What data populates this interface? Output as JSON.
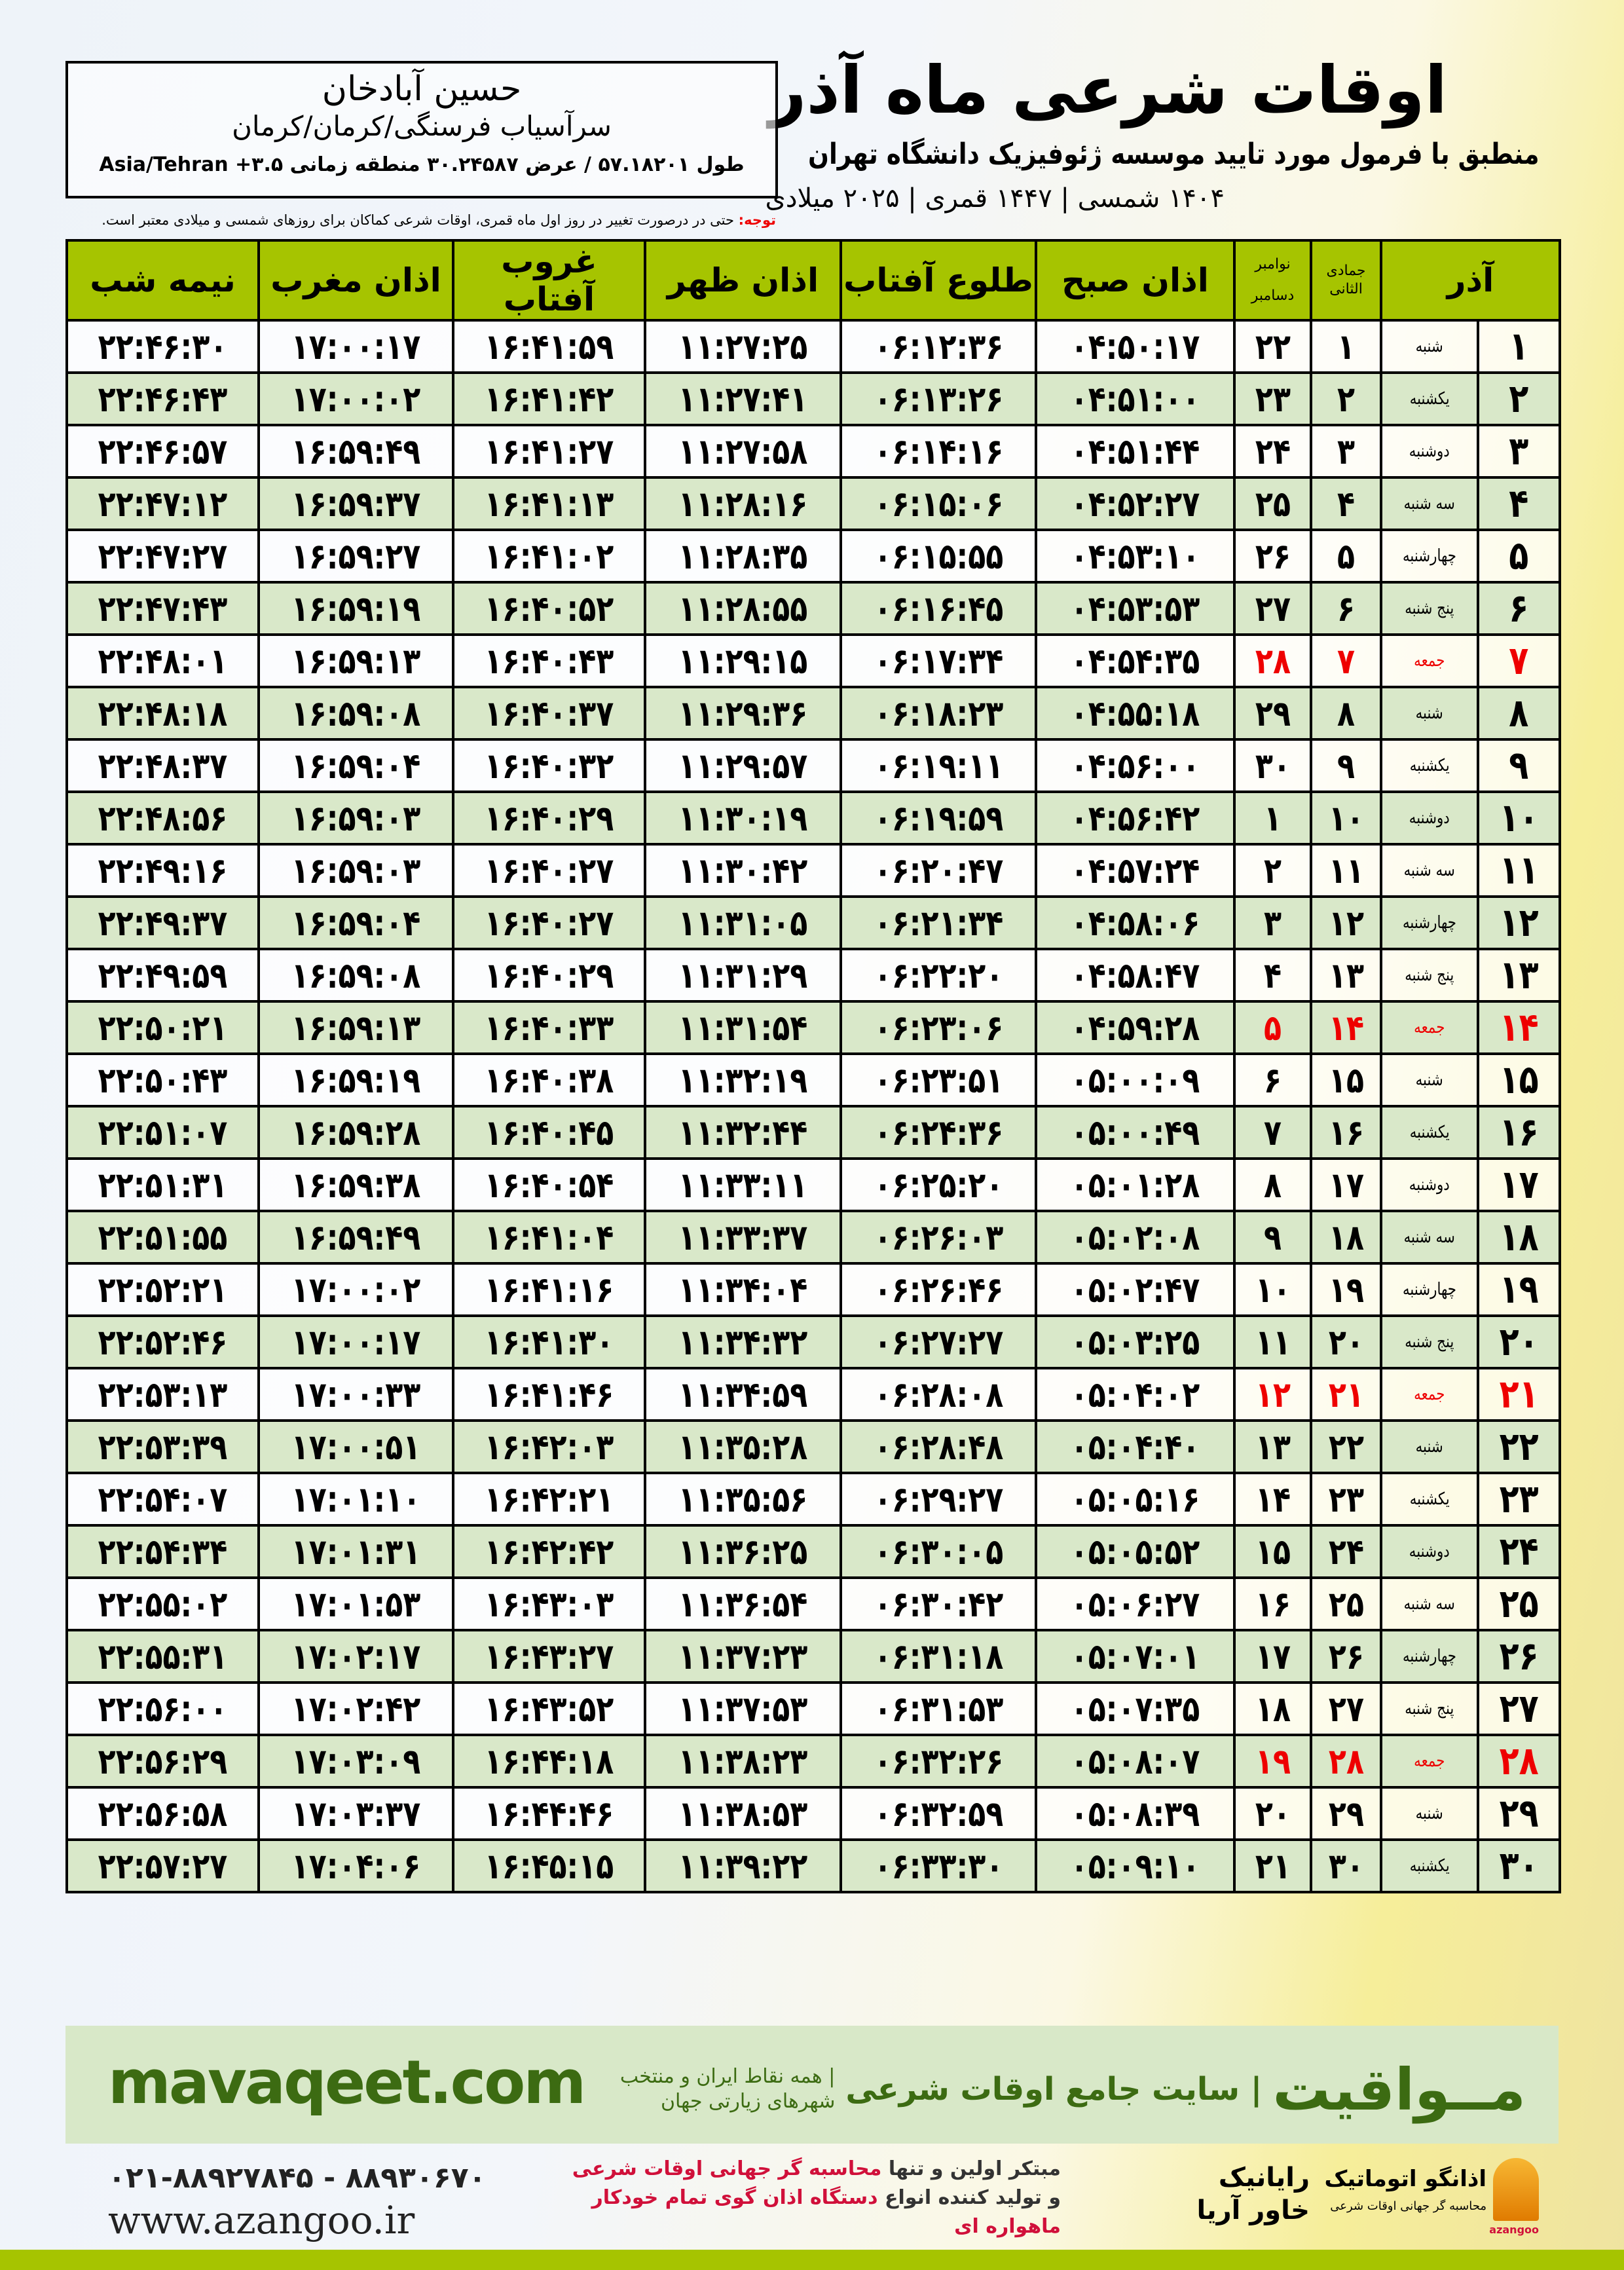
{
  "header": {
    "title": "اوقات شرعی ماه آذر",
    "subtitle": "منطبق با فرمول مورد تایید موسسه ژئوفیزیک دانشگاه تهران",
    "dateline": "۱۴۰۴ شمسی | ۱۴۴۷ قمری | ۲۰۲۵ میلادی"
  },
  "location": {
    "name": "حسین آبادخان",
    "path": "سرآسیاب فرسنگی/کرمان/کرمان",
    "coords": "طول ۵۷.۱۸۲۰۱ / عرض ۳۰.۲۴۵۸۷ منطقه زمانی ۳.۵+ Asia/Tehran"
  },
  "notice": {
    "label": "توجه:",
    "text": " حتی در درصورت تغییر در روز اول ماه قمری، اوقات شرعی کماکان برای روزهای شمسی و میلادی معتبر است."
  },
  "table": {
    "headers": {
      "month": "آذر",
      "hijri": "جمادی الثانی",
      "greg_top": "نوامبر",
      "greg_bottom": "دسامبر",
      "fajr": "اذان صبح",
      "sunrise": "طلوع آفتاب",
      "dhuhr": "اذان ظهر",
      "sunset": "غروب آفتاب",
      "maghrib": "اذان مغرب",
      "midnight": "نیمه شب"
    },
    "friday_color": "#e00000",
    "rows": [
      {
        "day": "۱",
        "weekday": "شنبه",
        "hijri": "۱",
        "greg": "۲۲",
        "fajr": "۰۴:۵۰:۱۷",
        "sunrise": "۰۶:۱۲:۳۶",
        "dhuhr": "۱۱:۲۷:۲۵",
        "sunset": "۱۶:۴۱:۵۹",
        "maghrib": "۱۷:۰۰:۱۷",
        "midnight": "۲۲:۴۶:۳۰"
      },
      {
        "day": "۲",
        "weekday": "یکشنبه",
        "hijri": "۲",
        "greg": "۲۳",
        "fajr": "۰۴:۵۱:۰۰",
        "sunrise": "۰۶:۱۳:۲۶",
        "dhuhr": "۱۱:۲۷:۴۱",
        "sunset": "۱۶:۴۱:۴۲",
        "maghrib": "۱۷:۰۰:۰۲",
        "midnight": "۲۲:۴۶:۴۳"
      },
      {
        "day": "۳",
        "weekday": "دوشنبه",
        "hijri": "۳",
        "greg": "۲۴",
        "fajr": "۰۴:۵۱:۴۴",
        "sunrise": "۰۶:۱۴:۱۶",
        "dhuhr": "۱۱:۲۷:۵۸",
        "sunset": "۱۶:۴۱:۲۷",
        "maghrib": "۱۶:۵۹:۴۹",
        "midnight": "۲۲:۴۶:۵۷"
      },
      {
        "day": "۴",
        "weekday": "سه شنبه",
        "hijri": "۴",
        "greg": "۲۵",
        "fajr": "۰۴:۵۲:۲۷",
        "sunrise": "۰۶:۱۵:۰۶",
        "dhuhr": "۱۱:۲۸:۱۶",
        "sunset": "۱۶:۴۱:۱۳",
        "maghrib": "۱۶:۵۹:۳۷",
        "midnight": "۲۲:۴۷:۱۲"
      },
      {
        "day": "۵",
        "weekday": "چهارشنبه",
        "hijri": "۵",
        "greg": "۲۶",
        "fajr": "۰۴:۵۳:۱۰",
        "sunrise": "۰۶:۱۵:۵۵",
        "dhuhr": "۱۱:۲۸:۳۵",
        "sunset": "۱۶:۴۱:۰۲",
        "maghrib": "۱۶:۵۹:۲۷",
        "midnight": "۲۲:۴۷:۲۷"
      },
      {
        "day": "۶",
        "weekday": "پنج شنبه",
        "hijri": "۶",
        "greg": "۲۷",
        "fajr": "۰۴:۵۳:۵۳",
        "sunrise": "۰۶:۱۶:۴۵",
        "dhuhr": "۱۱:۲۸:۵۵",
        "sunset": "۱۶:۴۰:۵۲",
        "maghrib": "۱۶:۵۹:۱۹",
        "midnight": "۲۲:۴۷:۴۳"
      },
      {
        "day": "۷",
        "weekday": "جمعه",
        "hijri": "۷",
        "greg": "۲۸",
        "fajr": "۰۴:۵۴:۳۵",
        "sunrise": "۰۶:۱۷:۳۴",
        "dhuhr": "۱۱:۲۹:۱۵",
        "sunset": "۱۶:۴۰:۴۳",
        "maghrib": "۱۶:۵۹:۱۳",
        "midnight": "۲۲:۴۸:۰۱",
        "friday": true
      },
      {
        "day": "۸",
        "weekday": "شنبه",
        "hijri": "۸",
        "greg": "۲۹",
        "fajr": "۰۴:۵۵:۱۸",
        "sunrise": "۰۶:۱۸:۲۳",
        "dhuhr": "۱۱:۲۹:۳۶",
        "sunset": "۱۶:۴۰:۳۷",
        "maghrib": "۱۶:۵۹:۰۸",
        "midnight": "۲۲:۴۸:۱۸"
      },
      {
        "day": "۹",
        "weekday": "یکشنبه",
        "hijri": "۹",
        "greg": "۳۰",
        "fajr": "۰۴:۵۶:۰۰",
        "sunrise": "۰۶:۱۹:۱۱",
        "dhuhr": "۱۱:۲۹:۵۷",
        "sunset": "۱۶:۴۰:۳۲",
        "maghrib": "۱۶:۵۹:۰۴",
        "midnight": "۲۲:۴۸:۳۷"
      },
      {
        "day": "۱۰",
        "weekday": "دوشنبه",
        "hijri": "۱۰",
        "greg": "۱",
        "fajr": "۰۴:۵۶:۴۲",
        "sunrise": "۰۶:۱۹:۵۹",
        "dhuhr": "۱۱:۳۰:۱۹",
        "sunset": "۱۶:۴۰:۲۹",
        "maghrib": "۱۶:۵۹:۰۳",
        "midnight": "۲۲:۴۸:۵۶"
      },
      {
        "day": "۱۱",
        "weekday": "سه شنبه",
        "hijri": "۱۱",
        "greg": "۲",
        "fajr": "۰۴:۵۷:۲۴",
        "sunrise": "۰۶:۲۰:۴۷",
        "dhuhr": "۱۱:۳۰:۴۲",
        "sunset": "۱۶:۴۰:۲۷",
        "maghrib": "۱۶:۵۹:۰۳",
        "midnight": "۲۲:۴۹:۱۶"
      },
      {
        "day": "۱۲",
        "weekday": "چهارشنبه",
        "hijri": "۱۲",
        "greg": "۳",
        "fajr": "۰۴:۵۸:۰۶",
        "sunrise": "۰۶:۲۱:۳۴",
        "dhuhr": "۱۱:۳۱:۰۵",
        "sunset": "۱۶:۴۰:۲۷",
        "maghrib": "۱۶:۵۹:۰۴",
        "midnight": "۲۲:۴۹:۳۷"
      },
      {
        "day": "۱۳",
        "weekday": "پنج شنبه",
        "hijri": "۱۳",
        "greg": "۴",
        "fajr": "۰۴:۵۸:۴۷",
        "sunrise": "۰۶:۲۲:۲۰",
        "dhuhr": "۱۱:۳۱:۲۹",
        "sunset": "۱۶:۴۰:۲۹",
        "maghrib": "۱۶:۵۹:۰۸",
        "midnight": "۲۲:۴۹:۵۹"
      },
      {
        "day": "۱۴",
        "weekday": "جمعه",
        "hijri": "۱۴",
        "greg": "۵",
        "fajr": "۰۴:۵۹:۲۸",
        "sunrise": "۰۶:۲۳:۰۶",
        "dhuhr": "۱۱:۳۱:۵۴",
        "sunset": "۱۶:۴۰:۳۳",
        "maghrib": "۱۶:۵۹:۱۳",
        "midnight": "۲۲:۵۰:۲۱",
        "friday": true
      },
      {
        "day": "۱۵",
        "weekday": "شنبه",
        "hijri": "۱۵",
        "greg": "۶",
        "fajr": "۰۵:۰۰:۰۹",
        "sunrise": "۰۶:۲۳:۵۱",
        "dhuhr": "۱۱:۳۲:۱۹",
        "sunset": "۱۶:۴۰:۳۸",
        "maghrib": "۱۶:۵۹:۱۹",
        "midnight": "۲۲:۵۰:۴۳"
      },
      {
        "day": "۱۶",
        "weekday": "یکشنبه",
        "hijri": "۱۶",
        "greg": "۷",
        "fajr": "۰۵:۰۰:۴۹",
        "sunrise": "۰۶:۲۴:۳۶",
        "dhuhr": "۱۱:۳۲:۴۴",
        "sunset": "۱۶:۴۰:۴۵",
        "maghrib": "۱۶:۵۹:۲۸",
        "midnight": "۲۲:۵۱:۰۷"
      },
      {
        "day": "۱۷",
        "weekday": "دوشنبه",
        "hijri": "۱۷",
        "greg": "۸",
        "fajr": "۰۵:۰۱:۲۸",
        "sunrise": "۰۶:۲۵:۲۰",
        "dhuhr": "۱۱:۳۳:۱۱",
        "sunset": "۱۶:۴۰:۵۴",
        "maghrib": "۱۶:۵۹:۳۸",
        "midnight": "۲۲:۵۱:۳۱"
      },
      {
        "day": "۱۸",
        "weekday": "سه شنبه",
        "hijri": "۱۸",
        "greg": "۹",
        "fajr": "۰۵:۰۲:۰۸",
        "sunrise": "۰۶:۲۶:۰۳",
        "dhuhr": "۱۱:۳۳:۳۷",
        "sunset": "۱۶:۴۱:۰۴",
        "maghrib": "۱۶:۵۹:۴۹",
        "midnight": "۲۲:۵۱:۵۵"
      },
      {
        "day": "۱۹",
        "weekday": "چهارشنبه",
        "hijri": "۱۹",
        "greg": "۱۰",
        "fajr": "۰۵:۰۲:۴۷",
        "sunrise": "۰۶:۲۶:۴۶",
        "dhuhr": "۱۱:۳۴:۰۴",
        "sunset": "۱۶:۴۱:۱۶",
        "maghrib": "۱۷:۰۰:۰۲",
        "midnight": "۲۲:۵۲:۲۱"
      },
      {
        "day": "۲۰",
        "weekday": "پنج شنبه",
        "hijri": "۲۰",
        "greg": "۱۱",
        "fajr": "۰۵:۰۳:۲۵",
        "sunrise": "۰۶:۲۷:۲۷",
        "dhuhr": "۱۱:۳۴:۳۲",
        "sunset": "۱۶:۴۱:۳۰",
        "maghrib": "۱۷:۰۰:۱۷",
        "midnight": "۲۲:۵۲:۴۶"
      },
      {
        "day": "۲۱",
        "weekday": "جمعه",
        "hijri": "۲۱",
        "greg": "۱۲",
        "fajr": "۰۵:۰۴:۰۲",
        "sunrise": "۰۶:۲۸:۰۸",
        "dhuhr": "۱۱:۳۴:۵۹",
        "sunset": "۱۶:۴۱:۴۶",
        "maghrib": "۱۷:۰۰:۳۳",
        "midnight": "۲۲:۵۳:۱۳",
        "friday": true
      },
      {
        "day": "۲۲",
        "weekday": "شنبه",
        "hijri": "۲۲",
        "greg": "۱۳",
        "fajr": "۰۵:۰۴:۴۰",
        "sunrise": "۰۶:۲۸:۴۸",
        "dhuhr": "۱۱:۳۵:۲۸",
        "sunset": "۱۶:۴۲:۰۳",
        "maghrib": "۱۷:۰۰:۵۱",
        "midnight": "۲۲:۵۳:۳۹"
      },
      {
        "day": "۲۳",
        "weekday": "یکشنبه",
        "hijri": "۲۳",
        "greg": "۱۴",
        "fajr": "۰۵:۰۵:۱۶",
        "sunrise": "۰۶:۲۹:۲۷",
        "dhuhr": "۱۱:۳۵:۵۶",
        "sunset": "۱۶:۴۲:۲۱",
        "maghrib": "۱۷:۰۱:۱۰",
        "midnight": "۲۲:۵۴:۰۷"
      },
      {
        "day": "۲۴",
        "weekday": "دوشنبه",
        "hijri": "۲۴",
        "greg": "۱۵",
        "fajr": "۰۵:۰۵:۵۲",
        "sunrise": "۰۶:۳۰:۰۵",
        "dhuhr": "۱۱:۳۶:۲۵",
        "sunset": "۱۶:۴۲:۴۲",
        "maghrib": "۱۷:۰۱:۳۱",
        "midnight": "۲۲:۵۴:۳۴"
      },
      {
        "day": "۲۵",
        "weekday": "سه شنبه",
        "hijri": "۲۵",
        "greg": "۱۶",
        "fajr": "۰۵:۰۶:۲۷",
        "sunrise": "۰۶:۳۰:۴۲",
        "dhuhr": "۱۱:۳۶:۵۴",
        "sunset": "۱۶:۴۳:۰۳",
        "maghrib": "۱۷:۰۱:۵۳",
        "midnight": "۲۲:۵۵:۰۲"
      },
      {
        "day": "۲۶",
        "weekday": "چهارشنبه",
        "hijri": "۲۶",
        "greg": "۱۷",
        "fajr": "۰۵:۰۷:۰۱",
        "sunrise": "۰۶:۳۱:۱۸",
        "dhuhr": "۱۱:۳۷:۲۳",
        "sunset": "۱۶:۴۳:۲۷",
        "maghrib": "۱۷:۰۲:۱۷",
        "midnight": "۲۲:۵۵:۳۱"
      },
      {
        "day": "۲۷",
        "weekday": "پنج شنبه",
        "hijri": "۲۷",
        "greg": "۱۸",
        "fajr": "۰۵:۰۷:۳۵",
        "sunrise": "۰۶:۳۱:۵۳",
        "dhuhr": "۱۱:۳۷:۵۳",
        "sunset": "۱۶:۴۳:۵۲",
        "maghrib": "۱۷:۰۲:۴۲",
        "midnight": "۲۲:۵۶:۰۰"
      },
      {
        "day": "۲۸",
        "weekday": "جمعه",
        "hijri": "۲۸",
        "greg": "۱۹",
        "fajr": "۰۵:۰۸:۰۷",
        "sunrise": "۰۶:۳۲:۲۶",
        "dhuhr": "۱۱:۳۸:۲۳",
        "sunset": "۱۶:۴۴:۱۸",
        "maghrib": "۱۷:۰۳:۰۹",
        "midnight": "۲۲:۵۶:۲۹",
        "friday": true
      },
      {
        "day": "۲۹",
        "weekday": "شنبه",
        "hijri": "۲۹",
        "greg": "۲۰",
        "fajr": "۰۵:۰۸:۳۹",
        "sunrise": "۰۶:۳۲:۵۹",
        "dhuhr": "۱۱:۳۸:۵۳",
        "sunset": "۱۶:۴۴:۴۶",
        "maghrib": "۱۷:۰۳:۳۷",
        "midnight": "۲۲:۵۶:۵۸"
      },
      {
        "day": "۳۰",
        "weekday": "یکشنبه",
        "hijri": "۳۰",
        "greg": "۲۱",
        "fajr": "۰۵:۰۹:۱۰",
        "sunrise": "۰۶:۳۳:۳۰",
        "dhuhr": "۱۱:۳۹:۲۲",
        "sunset": "۱۶:۴۵:۱۵",
        "maghrib": "۱۷:۰۴:۰۶",
        "midnight": "۲۲:۵۷:۲۷"
      }
    ]
  },
  "footer": {
    "site": "mavaqeet.com",
    "brand": "مــواقیت",
    "tagline": "| سایت جامع اوقات شرعی",
    "tagline_small": "| همه نقاط ایران و منتخب شهرهای زیارتی جهان",
    "phone": "۰۲۱-۸۸۹۲۷۸۴۵ - ۸۸۹۳۰۶۷۰",
    "website": "www.azangoo.ir",
    "promo_line1_a": "مبتکر اولین و تنها ",
    "promo_line1_b": "محاسبه گر جهانی اوقات شرعی",
    "promo_line2_a": "و تولید کننده انواع ",
    "promo_line2_b": "دستگاه اذان گوی تمام خودکار ماهواره ای",
    "logo_rayanik": "رایانیک خاور آریا",
    "logo_azangoo": "اذانگو اتوماتیک",
    "logo_azangoo_sub": "محاسبه گر جهانی اوقات شرعی",
    "logo_azangoo_en": "azangoo"
  },
  "colors": {
    "header_green": "#a6c400",
    "row_green": "#d9e8c9",
    "footer_band": "#d8e8c8",
    "brand_green": "#3c6b12",
    "promo_red": "#d0103a"
  }
}
